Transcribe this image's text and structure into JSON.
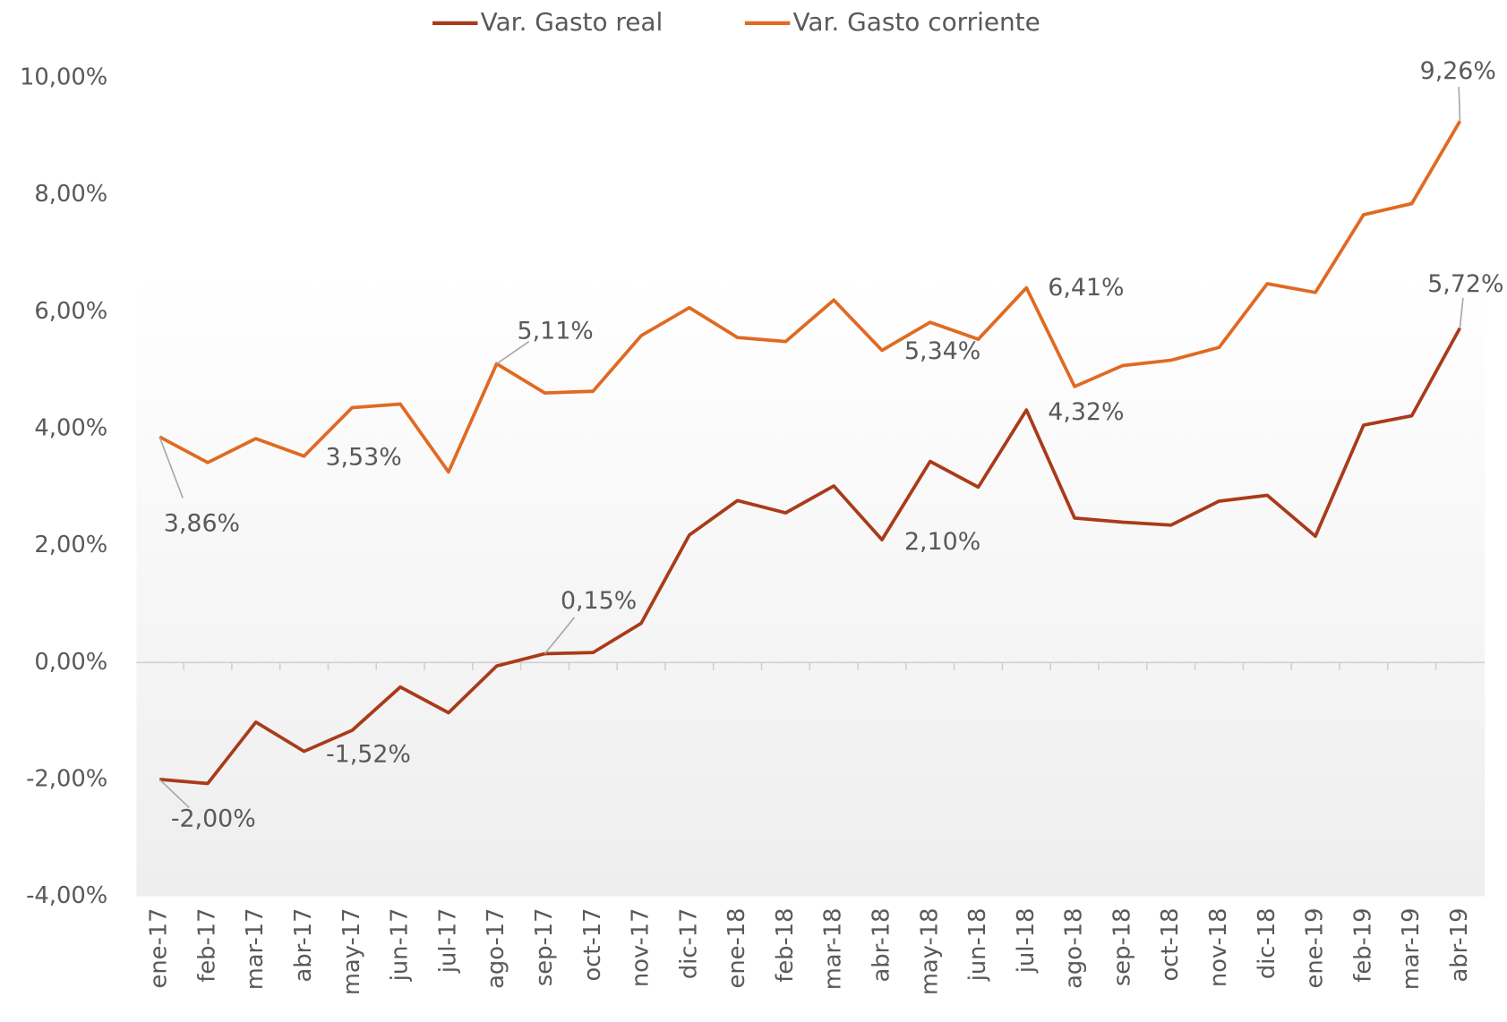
{
  "chart_data": {
    "type": "line",
    "categories": [
      "ene-17",
      "feb-17",
      "mar-17",
      "abr-17",
      "may-17",
      "jun-17",
      "jul-17",
      "ago-17",
      "sep-17",
      "oct-17",
      "nov-17",
      "dic-17",
      "ene-18",
      "feb-18",
      "mar-18",
      "abr-18",
      "may-18",
      "jun-18",
      "jul-18",
      "ago-18",
      "sep-18",
      "oct-18",
      "nov-18",
      "dic-18",
      "ene-19",
      "feb-19",
      "mar-19",
      "abr-19"
    ],
    "series": [
      {
        "name": "Var. Gasto real",
        "color": "#a93b1a",
        "values": [
          -2.0,
          -2.07,
          -1.02,
          -1.52,
          -1.16,
          -0.42,
          -0.86,
          -0.06,
          0.15,
          0.17,
          0.67,
          2.18,
          2.77,
          2.56,
          3.02,
          2.1,
          3.44,
          3.0,
          4.32,
          2.47,
          2.4,
          2.35,
          2.76,
          2.86,
          2.16,
          4.06,
          4.22,
          5.72
        ],
        "value_labels": [
          "-2,00%",
          null,
          null,
          "-1,52%",
          null,
          null,
          null,
          null,
          "0,15%",
          null,
          null,
          null,
          null,
          null,
          null,
          "2,10%",
          null,
          null,
          "4,32%",
          null,
          null,
          null,
          null,
          null,
          null,
          null,
          null,
          "5,72%"
        ]
      },
      {
        "name": "Var. Gasto corriente",
        "color": "#e06a22",
        "values": [
          3.86,
          3.42,
          3.83,
          3.53,
          4.36,
          4.42,
          3.26,
          5.11,
          4.61,
          4.64,
          5.59,
          6.07,
          5.56,
          5.49,
          6.2,
          5.34,
          5.82,
          5.53,
          6.41,
          4.72,
          5.08,
          5.17,
          5.39,
          6.48,
          6.33,
          7.66,
          7.85,
          9.26
        ],
        "value_labels": [
          "3,86%",
          null,
          null,
          "3,53%",
          null,
          null,
          null,
          "5,11%",
          null,
          null,
          null,
          null,
          null,
          null,
          null,
          "5,34%",
          null,
          null,
          "6,41%",
          null,
          null,
          null,
          null,
          null,
          null,
          null,
          null,
          "9,26%"
        ]
      }
    ],
    "ylim": [
      -4,
      10
    ],
    "yticks": [
      {
        "value": -4,
        "label": "-4,00%"
      },
      {
        "value": -2,
        "label": "-2,00%"
      },
      {
        "value": 0,
        "label": "0,00%"
      },
      {
        "value": 2,
        "label": "2,00%"
      },
      {
        "value": 4,
        "label": "4,00%"
      },
      {
        "value": 6,
        "label": "6,00%"
      },
      {
        "value": 8,
        "label": "8,00%"
      },
      {
        "value": 10,
        "label": "10,00%"
      }
    ],
    "legend": "top"
  }
}
